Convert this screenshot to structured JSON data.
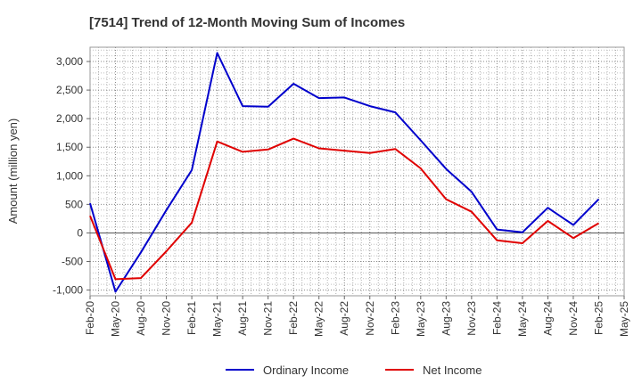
{
  "chart_data": {
    "type": "line",
    "title": "[7514]  Trend of 12-Month Moving Sum of Incomes",
    "xlabel": "",
    "ylabel": "Amount (million yen)",
    "ylim": [
      -1100,
      3250
    ],
    "yticks": [
      -1000,
      -500,
      0,
      500,
      1000,
      1500,
      2000,
      2500,
      3000
    ],
    "ytick_labels": [
      "-1,000",
      "-500",
      "0",
      "500",
      "1,000",
      "1,500",
      "2,000",
      "2,500",
      "3,000"
    ],
    "x": [
      "Feb-20",
      "May-20",
      "Aug-20",
      "Nov-20",
      "Feb-21",
      "May-21",
      "Aug-21",
      "Nov-21",
      "Feb-22",
      "May-22",
      "Aug-22",
      "Nov-22",
      "Feb-23",
      "May-23",
      "Aug-23",
      "Nov-23",
      "Feb-24",
      "May-24",
      "Aug-24",
      "Nov-24",
      "Feb-25",
      "May-25"
    ],
    "grid": true,
    "legend_position": "bottom",
    "series": [
      {
        "name": "Ordinary Income",
        "color": "#0000cc",
        "values": [
          520,
          -1030,
          -340,
          400,
          1100,
          3150,
          2220,
          2210,
          2610,
          2360,
          2370,
          2220,
          2110,
          1620,
          1120,
          720,
          60,
          10,
          440,
          140,
          590,
          null
        ]
      },
      {
        "name": "Net Income",
        "color": "#e00000",
        "values": [
          300,
          -810,
          -790,
          -320,
          180,
          1600,
          1420,
          1460,
          1650,
          1480,
          1440,
          1400,
          1470,
          1130,
          590,
          370,
          -130,
          -180,
          210,
          -90,
          170,
          null
        ]
      }
    ]
  }
}
